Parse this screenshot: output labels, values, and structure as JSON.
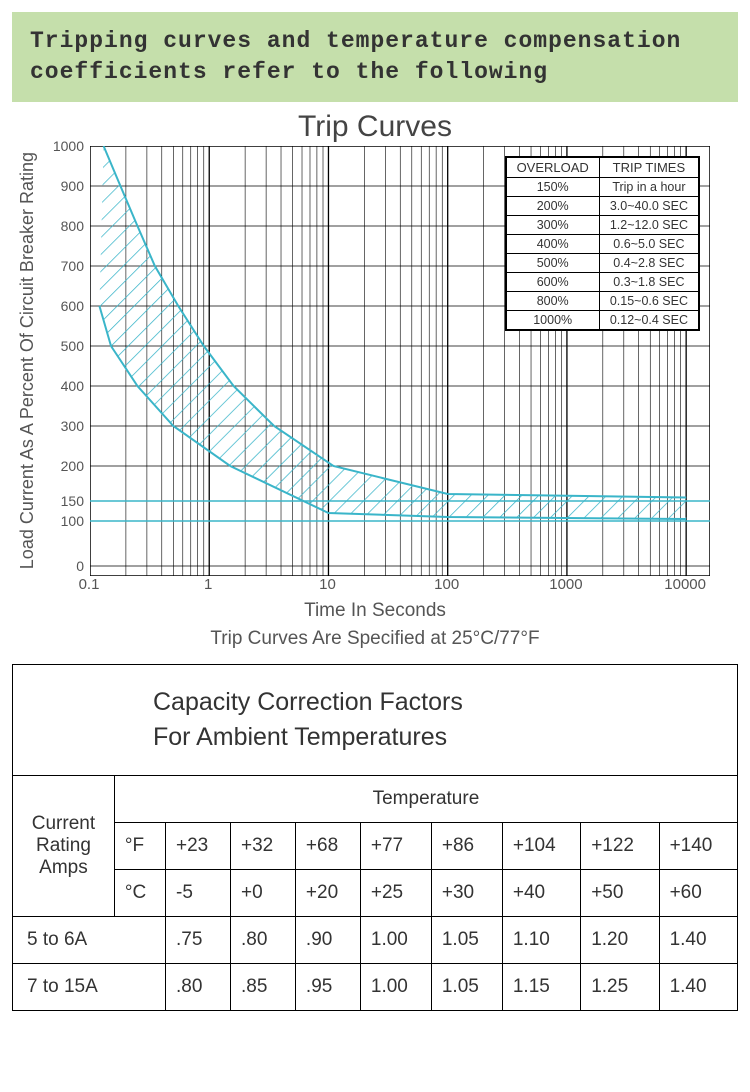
{
  "banner": "Tripping curves and temperature compensation coefficients refer to the following",
  "chart": {
    "title": "Trip Curves",
    "ylabel": "Load Current As A Percent\nOf Circuit Breaker Rating",
    "xlabel": "Time In Seconds",
    "note": "Trip Curves Are Specified at 25°C/77°F",
    "percent_symbol": "%",
    "yticks": [
      "1000",
      "900",
      "800",
      "700",
      "600",
      "500",
      "400",
      "300",
      "200",
      "150",
      "100",
      "0"
    ],
    "xticks": [
      "0.1",
      "1",
      "10",
      "100",
      "1000",
      "10000"
    ],
    "xlim_log": [
      -1,
      4.2
    ],
    "ylim": [
      0,
      1000
    ],
    "curve_color": "#3ab5c9",
    "grid_color": "#000000",
    "background_color": "#ffffff",
    "upper_curve": [
      [
        0.13,
        1000
      ],
      [
        0.18,
        900
      ],
      [
        0.25,
        800
      ],
      [
        0.35,
        700
      ],
      [
        0.55,
        600
      ],
      [
        0.9,
        500
      ],
      [
        1.6,
        400
      ],
      [
        3.5,
        300
      ],
      [
        11,
        200
      ],
      [
        100,
        160
      ],
      [
        10000,
        155
      ]
    ],
    "lower_curve": [
      [
        0.12,
        600
      ],
      [
        0.15,
        500
      ],
      [
        0.25,
        400
      ],
      [
        0.5,
        300
      ],
      [
        1.5,
        200
      ],
      [
        10,
        120
      ],
      [
        100,
        110
      ],
      [
        10000,
        105
      ]
    ],
    "legend": {
      "headers": [
        "OVERLOAD",
        "TRIP TIMES"
      ],
      "rows": [
        [
          "150%",
          "Trip in a hour"
        ],
        [
          "200%",
          "3.0~40.0 SEC"
        ],
        [
          "300%",
          "1.2~12.0 SEC"
        ],
        [
          "400%",
          "0.6~5.0 SEC"
        ],
        [
          "500%",
          "0.4~2.8 SEC"
        ],
        [
          "600%",
          "0.3~1.8 SEC"
        ],
        [
          "800%",
          "0.15~0.6 SEC"
        ],
        [
          "1000%",
          "0.12~0.4 SEC"
        ]
      ]
    }
  },
  "capacity": {
    "title_l1": "Capacity Correction Factors",
    "title_l2": "For Ambient Temperatures",
    "row_header": "Current Rating Amps",
    "col_header": "Temperature",
    "unit_rows": [
      [
        "°F",
        "+23",
        "+32",
        "+68",
        "+77",
        "+86",
        "+104",
        "+122",
        "+140"
      ],
      [
        "°C",
        "-5",
        "+0",
        "+20",
        "+25",
        "+30",
        "+40",
        "+50",
        "+60"
      ]
    ],
    "data_rows": [
      {
        "label": "5 to 6A",
        "vals": [
          ".75",
          ".80",
          ".90",
          "1.00",
          "1.05",
          "1.10",
          "1.20",
          "1.40"
        ]
      },
      {
        "label": "7 to 15A",
        "vals": [
          ".80",
          ".85",
          ".95",
          "1.00",
          "1.05",
          "1.15",
          "1.25",
          "1.40"
        ]
      }
    ]
  }
}
